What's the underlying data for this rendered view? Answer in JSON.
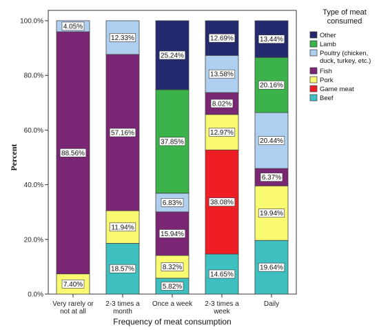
{
  "chart_data": {
    "type": "bar",
    "stacked": true,
    "orientation": "vertical",
    "title": "",
    "xlabel": "Frequency of meat consumption",
    "ylabel": "Percent",
    "ylim": [
      0,
      100
    ],
    "yticks": [
      "0.0%",
      "20.0%",
      "40.0%",
      "60.0%",
      "80.0%",
      "100.0%"
    ],
    "ytick_values": [
      0,
      20,
      40,
      60,
      80,
      100
    ],
    "categories": [
      [
        "Very rarely or",
        "not at all"
      ],
      [
        "2-3 times a",
        "month"
      ],
      [
        "Once a week"
      ],
      [
        "2-3 times a",
        "week"
      ],
      [
        "Daily"
      ]
    ],
    "legend_title": [
      "Type of meat",
      "consumed"
    ],
    "legend_position": "top-right",
    "series": [
      {
        "name": "Beef",
        "legend": [
          "Beef"
        ],
        "color": "#3ebfc0",
        "values": [
          0,
          18.57,
          5.82,
          14.65,
          19.64
        ],
        "labels": [
          "",
          "18.57%",
          "5.82%",
          "14.65%",
          "19.64%"
        ]
      },
      {
        "name": "Game meat",
        "legend": [
          "Game meat"
        ],
        "color": "#ee1e24",
        "values": [
          0,
          0,
          0,
          38.08,
          0
        ],
        "labels": [
          "",
          "",
          "",
          "38.08%",
          ""
        ]
      },
      {
        "name": "Pork",
        "legend": [
          "Pork"
        ],
        "color": "#fafa72",
        "values": [
          7.4,
          11.94,
          8.32,
          12.97,
          19.94
        ],
        "labels": [
          "7.40%",
          "11.94%",
          "8.32%",
          "12.97%",
          "19.94%"
        ]
      },
      {
        "name": "Fish",
        "legend": [
          "Fish"
        ],
        "color": "#7b2675",
        "values": [
          88.56,
          57.16,
          15.94,
          8.02,
          6.37
        ],
        "labels": [
          "88.56%",
          "57.16%",
          "15.94%",
          "8.02%",
          "6.37%"
        ]
      },
      {
        "name": "Poultry (chicken, duck, turkey, etc.)",
        "legend": [
          "Poultry (chicken,",
          "duck, turkey, etc.)"
        ],
        "color": "#aecff0",
        "values": [
          4.05,
          12.33,
          6.83,
          13.58,
          20.44
        ],
        "labels": [
          "4.05%",
          "12.33%",
          "6.83%",
          "13.58%",
          "20.44%"
        ]
      },
      {
        "name": "Lamb",
        "legend": [
          "Lamb"
        ],
        "color": "#3bb34a",
        "values": [
          0,
          0,
          37.85,
          0,
          20.16
        ],
        "labels": [
          "",
          "",
          "37.85%",
          "",
          "20.16%"
        ]
      },
      {
        "name": "Other",
        "legend": [
          "Other"
        ],
        "color": "#232a6e",
        "values": [
          0,
          0,
          25.24,
          12.69,
          13.44
        ],
        "labels": [
          "",
          "",
          "25.24%",
          "12.69%",
          "13.44%"
        ]
      }
    ],
    "legend_order": [
      "Other",
      "Lamb",
      "Poultry (chicken, duck, turkey, etc.)",
      "Fish",
      "Pork",
      "Game meat",
      "Beef"
    ],
    "grid": false
  }
}
